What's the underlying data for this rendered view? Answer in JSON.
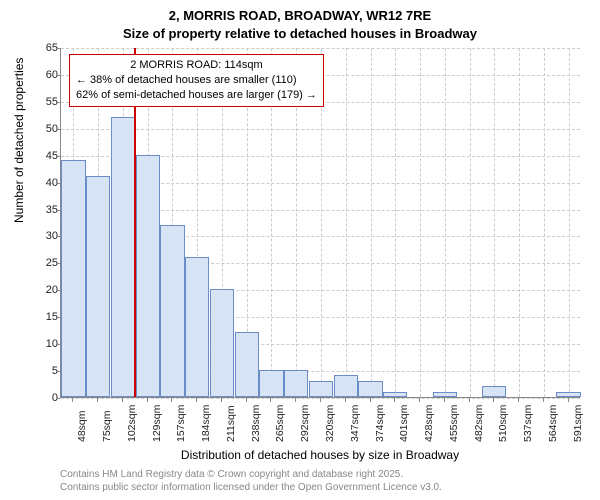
{
  "title_line_1": "2, MORRIS ROAD, BROADWAY, WR12 7RE",
  "title_line_2": "Size of property relative to detached houses in Broadway",
  "chart": {
    "type": "histogram",
    "ylabel": "Number of detached properties",
    "xlabel": "Distribution of detached houses by size in Broadway",
    "ylim": [
      0,
      65
    ],
    "ytick_step": 5,
    "background_color": "#ffffff",
    "grid_color": "#cccccc",
    "axis_color": "#888888",
    "bar_fill": "#d6e4f5",
    "bar_border": "#6a8cc7",
    "marker_color": "#cc0000",
    "categories": [
      "48sqm",
      "75sqm",
      "102sqm",
      "129sqm",
      "157sqm",
      "184sqm",
      "211sqm",
      "238sqm",
      "265sqm",
      "292sqm",
      "320sqm",
      "347sqm",
      "374sqm",
      "401sqm",
      "428sqm",
      "455sqm",
      "482sqm",
      "510sqm",
      "537sqm",
      "564sqm",
      "591sqm"
    ],
    "values": [
      44,
      41,
      52,
      45,
      32,
      26,
      20,
      12,
      5,
      5,
      3,
      4,
      3,
      1,
      0,
      1,
      0,
      2,
      0,
      0,
      1
    ],
    "marker_value": 114,
    "bin_start": 48,
    "bin_width": 27,
    "label_fontsize": 12,
    "tick_fontsize": 11,
    "title_fontsize": 13
  },
  "callout": {
    "line1": "2 MORRIS ROAD: 114sqm",
    "line2": "← 38% of detached houses are smaller (110)",
    "line3": "62% of semi-detached houses are larger (179) →"
  },
  "attribution": {
    "line1": "Contains HM Land Registry data © Crown copyright and database right 2025.",
    "line2": "Contains public sector information licensed under the Open Government Licence v3.0."
  }
}
